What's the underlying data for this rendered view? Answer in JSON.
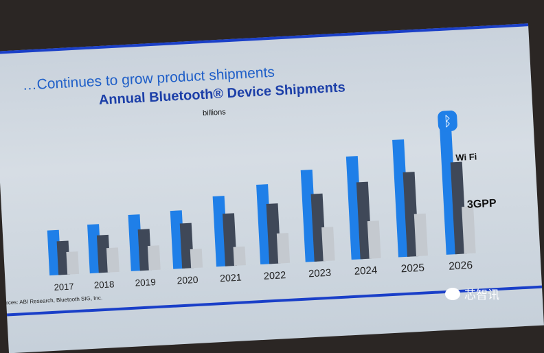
{
  "slide": {
    "headline": "…Continues to grow product shipments",
    "source": "rces: ABI Research, Bluetooth SIG, Inc."
  },
  "watermark": "芯智讯",
  "chart_data": {
    "type": "bar",
    "title": "Annual Bluetooth® Device Shipments",
    "ylabel": "billions",
    "categories": [
      "2017",
      "2018",
      "2019",
      "2020",
      "2021",
      "2022",
      "2023",
      "2024",
      "2025",
      "2026"
    ],
    "series": [
      {
        "name": "Bluetooth",
        "color": "#1f7fe8",
        "values": [
          2.4,
          2.6,
          3.0,
          3.1,
          3.75,
          4.25,
          4.9,
          5.5,
          6.25,
          7.0
        ]
      },
      {
        "name": "Wi Fi",
        "color": "#3f4858",
        "values": [
          1.8,
          2.0,
          2.2,
          2.4,
          2.8,
          3.2,
          3.6,
          4.1,
          4.5,
          4.9
        ]
      },
      {
        "name": "3GPP",
        "color": "#c4c9cf",
        "values": [
          1.2,
          1.3,
          1.3,
          1.0,
          1.0,
          1.6,
          1.8,
          2.0,
          2.25,
          2.5
        ]
      }
    ],
    "ylim": [
      0,
      7.5
    ],
    "grid": false,
    "legend": "logos beside 2026 bars"
  }
}
